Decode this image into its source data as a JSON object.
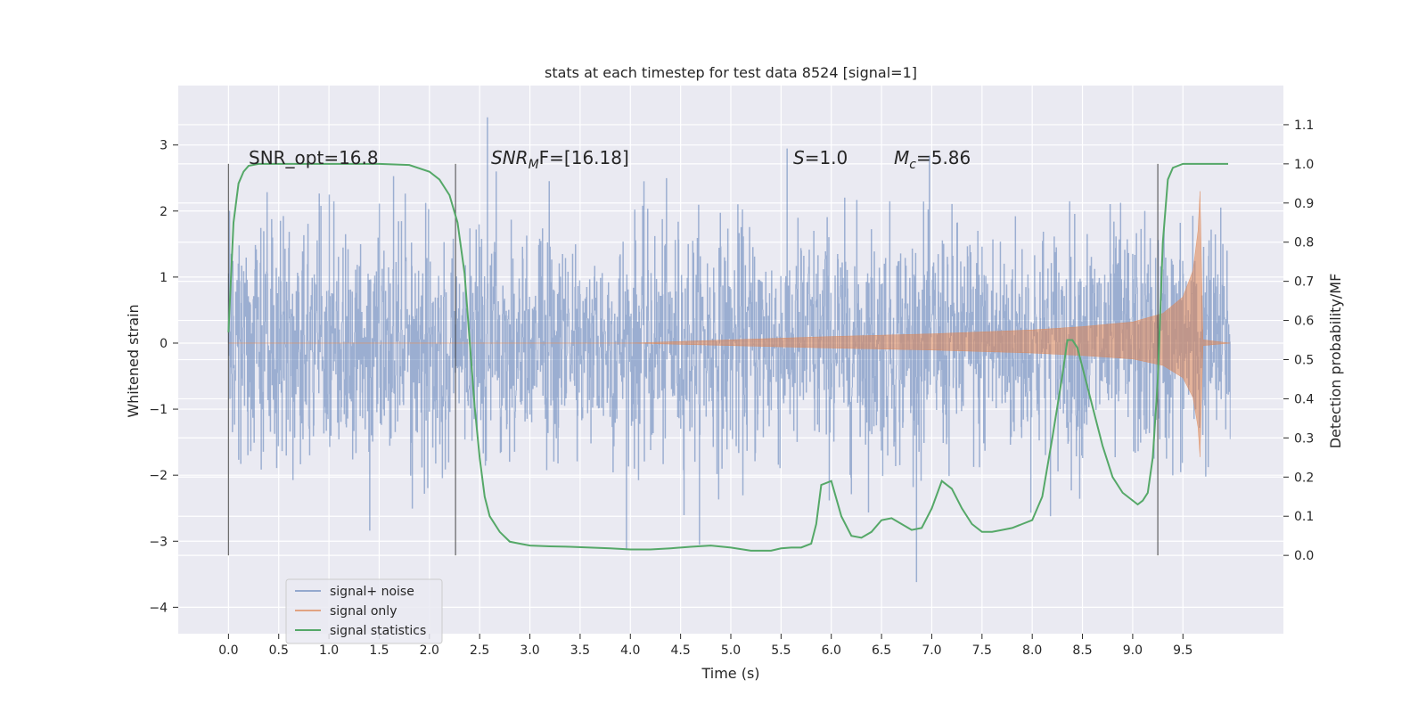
{
  "chart_data": {
    "type": "line",
    "title": "stats at each timestep for test data 8524 [signal=1]",
    "xlabel": "Time (s)",
    "ylabel_left": "Whitened strain",
    "ylabel_right": "Detection probability/MF",
    "xlim": [
      -0.5,
      10.5
    ],
    "ylim_left": [
      -4.4,
      3.9
    ],
    "ylim_right": [
      -0.2,
      1.2
    ],
    "x_ticks": [
      "0.0",
      "0.5",
      "1.0",
      "1.5",
      "2.0",
      "2.5",
      "3.0",
      "3.5",
      "4.0",
      "4.5",
      "5.0",
      "5.5",
      "6.0",
      "6.5",
      "7.0",
      "7.5",
      "8.0",
      "8.5",
      "9.0",
      "9.5"
    ],
    "y_left_ticks": [
      "3",
      "2",
      "1",
      "0",
      "−1",
      "−2",
      "−3",
      "−4"
    ],
    "y_right_ticks": [
      "1.1",
      "1.0",
      "0.9",
      "0.8",
      "0.7",
      "0.6",
      "0.5",
      "0.4",
      "0.3",
      "0.2",
      "0.1",
      "0.0"
    ],
    "grid": true,
    "legend_position": "lower-left",
    "annotations": {
      "snr_opt": "SNR_opt=16.8",
      "snr_mf_main": "SNR",
      "snr_mf_sub": "M",
      "snr_mf_rest": "F=[16.18]",
      "s_italic": "S",
      "s_rest": "=1.0",
      "mc_main": "M",
      "mc_sub": "c",
      "mc_rest": "=5.86"
    },
    "vertical_markers_s": [
      0.0,
      2.26,
      9.25
    ],
    "series": [
      {
        "name": "signal+ noise",
        "color": "#4c72b0",
        "axis": "left",
        "description_values": {
          "mean": 0,
          "std": 0.9,
          "t_start": 0.0,
          "t_end": 9.97
        }
      },
      {
        "name": "signal only",
        "color": "#dd8452",
        "axis": "left",
        "envelope_t": [
          0.0,
          4.0,
          5.0,
          6.0,
          7.0,
          8.0,
          8.5,
          9.0,
          9.3,
          9.5,
          9.6,
          9.65,
          9.67,
          9.7,
          9.97
        ],
        "envelope_amp": [
          0.0,
          0.0,
          0.05,
          0.1,
          0.14,
          0.2,
          0.25,
          0.32,
          0.45,
          0.7,
          1.1,
          1.7,
          2.3,
          0.05,
          0.0
        ]
      },
      {
        "name": "signal statistics",
        "color": "#55a868",
        "axis": "right",
        "t": [
          0.0,
          0.05,
          0.1,
          0.15,
          0.2,
          0.3,
          0.5,
          1.0,
          1.5,
          1.8,
          2.0,
          2.1,
          2.2,
          2.28,
          2.35,
          2.4,
          2.45,
          2.5,
          2.55,
          2.6,
          2.7,
          2.8,
          2.9,
          3.0,
          3.2,
          3.4,
          3.6,
          3.8,
          4.0,
          4.2,
          4.4,
          4.6,
          4.8,
          5.0,
          5.2,
          5.4,
          5.5,
          5.6,
          5.7,
          5.8,
          5.85,
          5.9,
          6.0,
          6.1,
          6.2,
          6.3,
          6.4,
          6.5,
          6.6,
          6.7,
          6.8,
          6.9,
          7.0,
          7.1,
          7.2,
          7.3,
          7.4,
          7.5,
          7.6,
          7.7,
          7.8,
          7.9,
          8.0,
          8.1,
          8.2,
          8.3,
          8.35,
          8.4,
          8.45,
          8.5,
          8.6,
          8.7,
          8.8,
          8.9,
          9.0,
          9.05,
          9.1,
          9.15,
          9.2,
          9.25,
          9.3,
          9.35,
          9.4,
          9.5,
          9.7,
          9.95
        ],
        "v": [
          0.57,
          0.85,
          0.95,
          0.98,
          0.995,
          1.0,
          1.0,
          1.0,
          1.0,
          0.997,
          0.98,
          0.96,
          0.92,
          0.85,
          0.72,
          0.55,
          0.38,
          0.25,
          0.15,
          0.1,
          0.06,
          0.035,
          0.03,
          0.025,
          0.023,
          0.022,
          0.02,
          0.018,
          0.015,
          0.015,
          0.018,
          0.022,
          0.025,
          0.02,
          0.012,
          0.012,
          0.018,
          0.02,
          0.02,
          0.03,
          0.08,
          0.18,
          0.19,
          0.1,
          0.05,
          0.045,
          0.06,
          0.09,
          0.095,
          0.08,
          0.065,
          0.07,
          0.12,
          0.19,
          0.17,
          0.12,
          0.08,
          0.06,
          0.06,
          0.065,
          0.07,
          0.08,
          0.09,
          0.15,
          0.3,
          0.46,
          0.55,
          0.55,
          0.53,
          0.48,
          0.38,
          0.28,
          0.2,
          0.16,
          0.14,
          0.13,
          0.14,
          0.16,
          0.25,
          0.45,
          0.8,
          0.96,
          0.99,
          1.0,
          1.0,
          1.0
        ]
      }
    ]
  }
}
